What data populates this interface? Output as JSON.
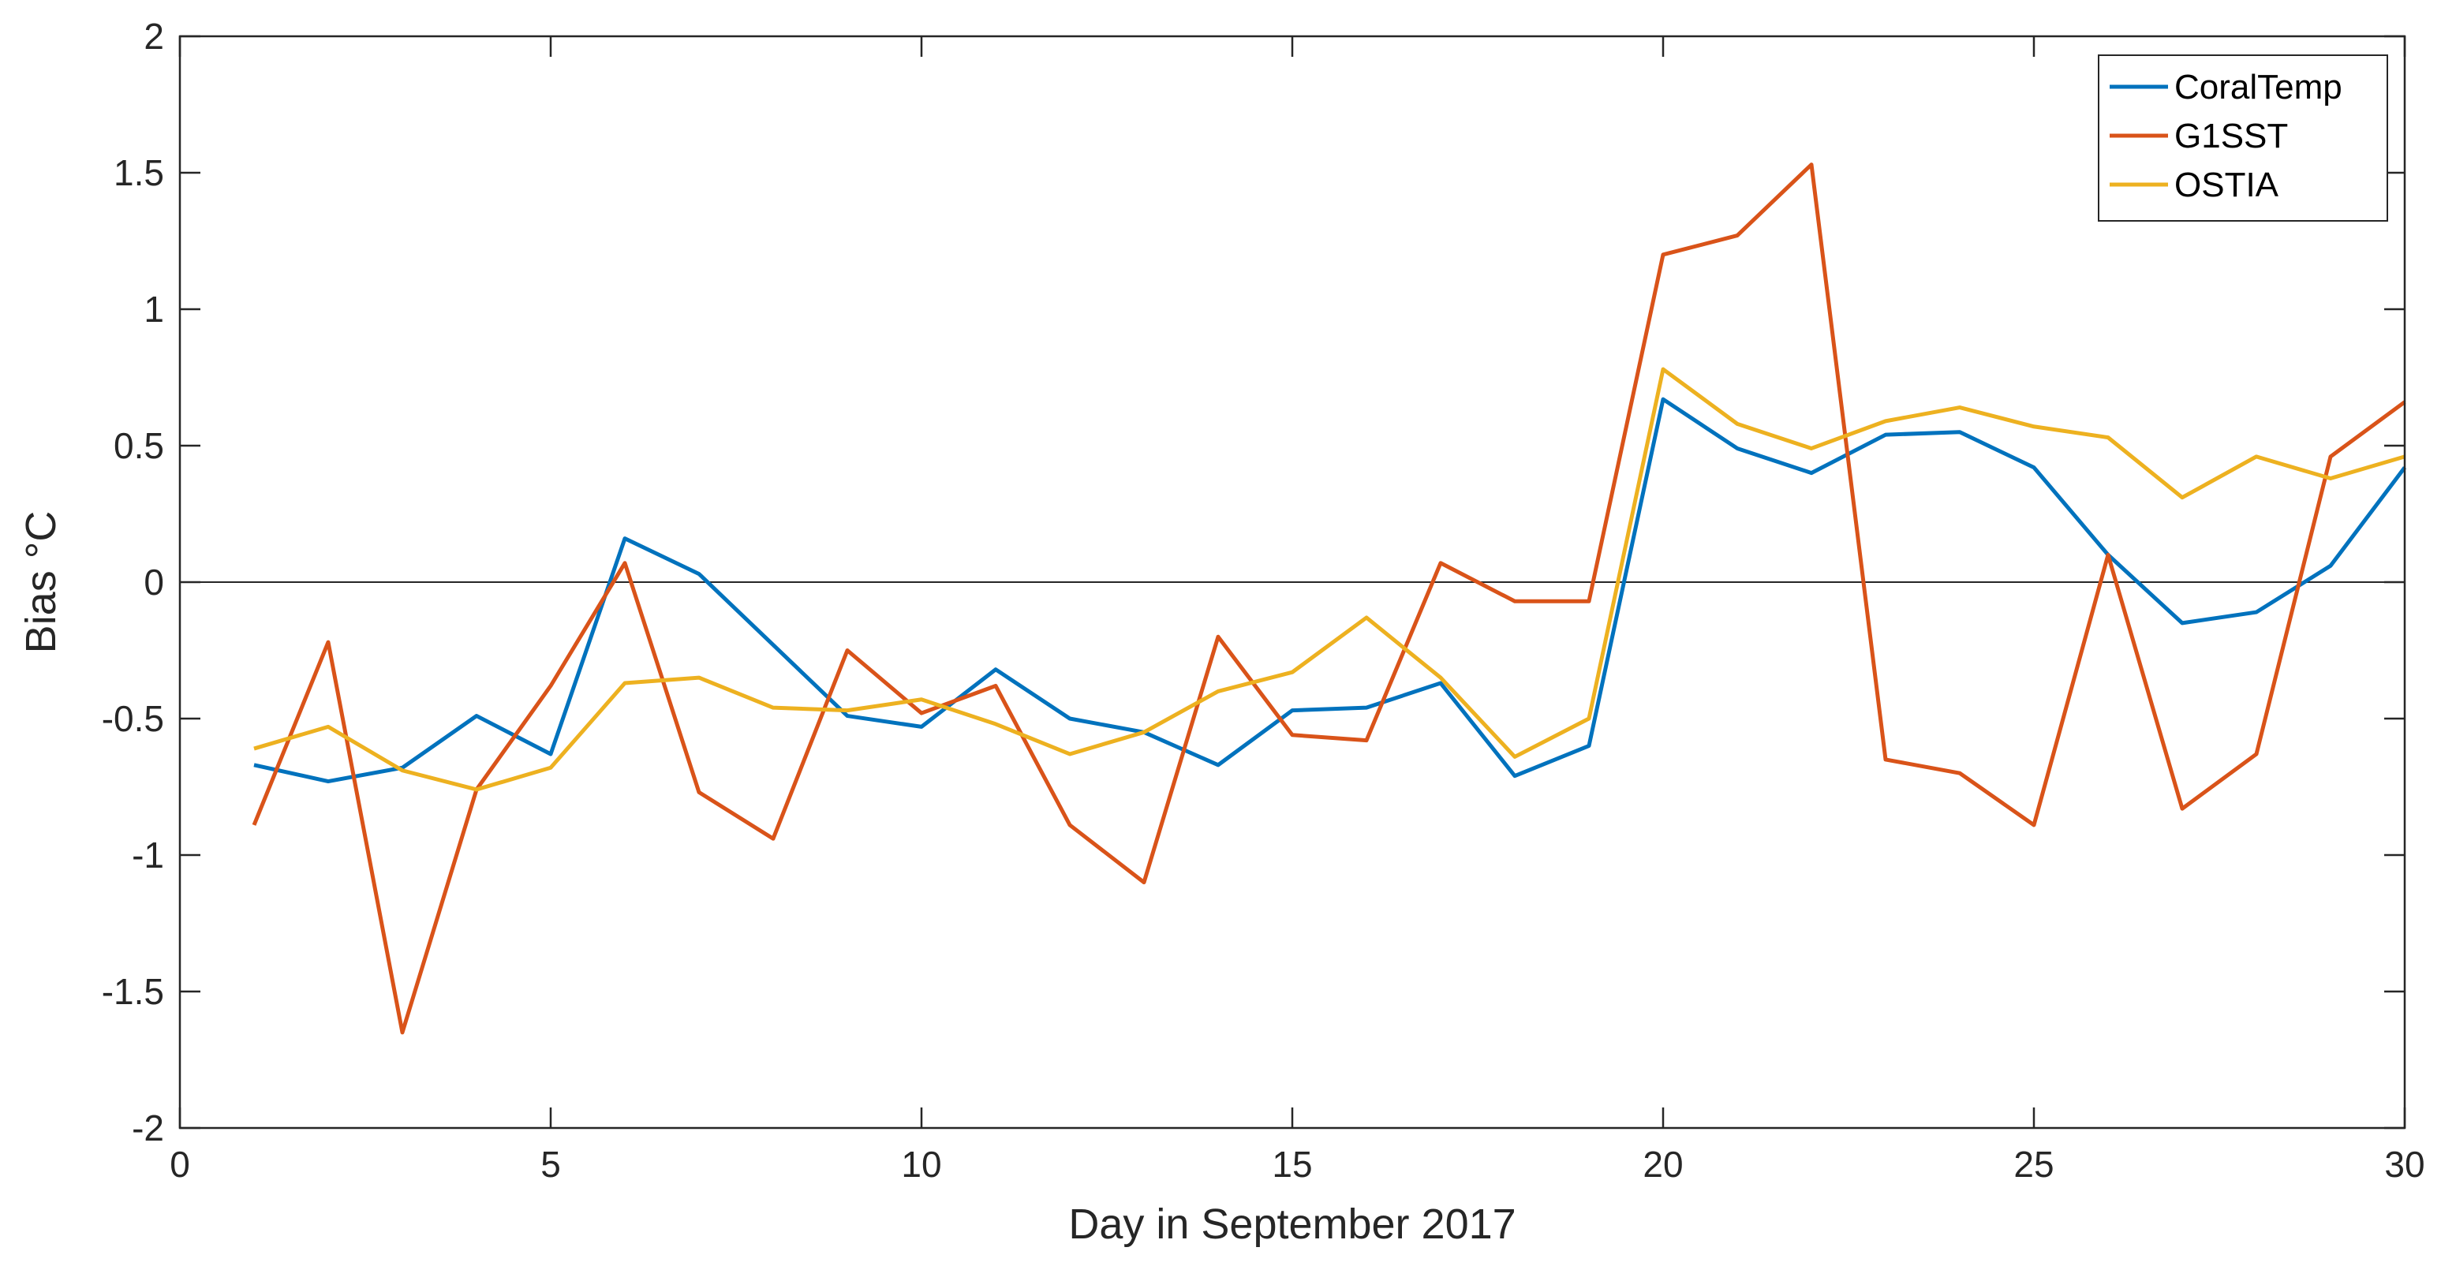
{
  "chart_data": {
    "type": "line",
    "title": "",
    "xlabel": "Day in September 2017",
    "ylabel": "Bias °C",
    "xlim": [
      0,
      30
    ],
    "ylim": [
      -2,
      2
    ],
    "xticks": [
      0,
      5,
      10,
      15,
      20,
      25,
      30
    ],
    "yticks": [
      -2,
      -1.5,
      -1,
      -0.5,
      0,
      0.5,
      1,
      1.5,
      2
    ],
    "grid": false,
    "zero_line": true,
    "legend": "top-right",
    "x": [
      1,
      2,
      3,
      4,
      5,
      6,
      7,
      8,
      9,
      10,
      11,
      12,
      13,
      14,
      15,
      16,
      17,
      18,
      19,
      20,
      21,
      22,
      23,
      24,
      25,
      26,
      27,
      28,
      29,
      30
    ],
    "series": [
      {
        "name": "CoralTemp",
        "color": "#0072BD",
        "values": [
          -0.67,
          -0.73,
          -0.68,
          -0.49,
          -0.63,
          0.16,
          0.03,
          -0.23,
          -0.49,
          -0.53,
          -0.32,
          -0.5,
          -0.55,
          -0.67,
          -0.47,
          -0.46,
          -0.37,
          -0.71,
          -0.6,
          0.67,
          0.49,
          0.4,
          0.54,
          0.55,
          0.42,
          0.1,
          -0.15,
          -0.11,
          0.06,
          0.42
        ]
      },
      {
        "name": "G1SST",
        "color": "#D95319",
        "values": [
          -0.89,
          -0.22,
          -1.65,
          -0.76,
          -0.38,
          0.07,
          -0.77,
          -0.94,
          -0.25,
          -0.48,
          -0.38,
          -0.89,
          -1.1,
          -0.2,
          -0.56,
          -0.58,
          0.07,
          -0.07,
          -0.07,
          1.2,
          1.27,
          1.53,
          -0.65,
          -0.7,
          -0.89,
          0.1,
          -0.83,
          -0.63,
          0.46,
          0.66
        ]
      },
      {
        "name": "OSTIA",
        "color": "#EDB120",
        "values": [
          -0.61,
          -0.53,
          -0.69,
          -0.76,
          -0.68,
          -0.37,
          -0.35,
          -0.46,
          -0.47,
          -0.43,
          -0.52,
          -0.63,
          -0.55,
          -0.4,
          -0.33,
          -0.13,
          -0.35,
          -0.64,
          -0.5,
          0.78,
          0.58,
          0.49,
          0.59,
          0.64,
          0.57,
          0.53,
          0.31,
          0.46,
          0.38,
          0.46
        ]
      }
    ]
  }
}
